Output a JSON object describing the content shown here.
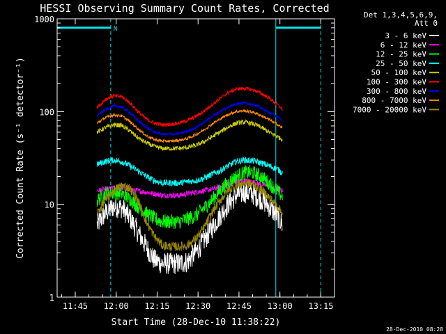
{
  "chart_data": {
    "type": "line",
    "title": "HESSI Observing Summary Count Rates, Corrected",
    "xlabel": "Start Time (28-Dec-10 11:38:22)",
    "ylabel": "Corrected Count Rate (s⁻¹ detector⁻¹)",
    "yscale": "log",
    "ylim": [
      1,
      1000
    ],
    "xlim": [
      "11:38:22",
      "13:20:00"
    ],
    "x_ticks": [
      "11:45",
      "12:00",
      "12:15",
      "12:30",
      "12:45",
      "13:00",
      "13:15"
    ],
    "y_ticks": [
      "1",
      "10",
      "100",
      "1000"
    ],
    "grid": false,
    "legend": {
      "placement": "top-right",
      "header": [
        "Det 1,3,4,5,6,9,",
        "Att 0"
      ]
    },
    "footer_timestamp": "28-Dec-2010 08:28",
    "status_bars": [
      {
        "label": "N",
        "color": "#00e5ee",
        "start": "11:38:22",
        "end": "11:58:00",
        "level": 800
      },
      {
        "label": "",
        "color": "#00e5ee",
        "start": "12:58:30",
        "end": "13:15:00",
        "level": 800
      }
    ],
    "vertical_markers": [
      {
        "time": "11:38:22",
        "style": "solid",
        "color": "#00e5ee"
      },
      {
        "time": "11:58:00",
        "style": "dashed",
        "color": "#00e5ee"
      },
      {
        "time": "12:58:30",
        "style": "solid",
        "color": "#00e5ee"
      },
      {
        "time": "13:15:00",
        "style": "dashed",
        "color": "#00e5ee"
      }
    ],
    "series": [
      {
        "name": "3 - 6 keV",
        "color": "#ffffff",
        "x": [
          "11:53",
          "11:56",
          "11:59",
          "12:02",
          "12:05",
          "12:08",
          "12:11",
          "12:14",
          "12:17",
          "12:20",
          "12:23",
          "12:26",
          "12:29",
          "12:32",
          "12:35",
          "12:38",
          "12:41",
          "12:44",
          "12:47",
          "12:50",
          "12:53",
          "12:56",
          "12:59",
          "13:01"
        ],
        "y": [
          6,
          8,
          9.5,
          9.2,
          7.2,
          5,
          3.5,
          2.5,
          2.3,
          2.3,
          2.3,
          2.4,
          3,
          4,
          5.5,
          7.5,
          10,
          12.5,
          13.5,
          13,
          11.5,
          9.5,
          7.5,
          6
        ]
      },
      {
        "name": "6 - 12 keV",
        "color": "#ff00ff",
        "x": [
          "11:53",
          "11:56",
          "11:59",
          "12:02",
          "12:05",
          "12:08",
          "12:11",
          "12:14",
          "12:17",
          "12:20",
          "12:23",
          "12:26",
          "12:29",
          "12:32",
          "12:35",
          "12:38",
          "12:41",
          "12:44",
          "12:47",
          "12:50",
          "12:53",
          "12:56",
          "12:59",
          "13:01"
        ],
        "y": [
          14,
          14.5,
          15,
          15,
          14.5,
          14,
          13.5,
          13,
          12.5,
          12.5,
          12.5,
          13,
          13.5,
          14,
          14.5,
          15.5,
          16.5,
          17.5,
          18,
          17.5,
          16.5,
          15.5,
          14.5,
          14
        ]
      },
      {
        "name": "12 - 25 keV",
        "color": "#00ff00",
        "x": [
          "11:53",
          "11:56",
          "11:59",
          "12:02",
          "12:05",
          "12:08",
          "12:11",
          "12:14",
          "12:17",
          "12:20",
          "12:23",
          "12:26",
          "12:29",
          "12:32",
          "12:35",
          "12:38",
          "12:41",
          "12:44",
          "12:47",
          "12:50",
          "12:53",
          "12:56",
          "12:59",
          "13:01"
        ],
        "y": [
          11,
          13,
          13.5,
          13,
          11.5,
          9.5,
          8,
          7,
          6.5,
          6.5,
          6.5,
          7,
          7.5,
          9,
          11,
          14,
          17,
          20,
          22,
          22,
          20,
          17,
          14,
          12
        ]
      },
      {
        "name": "25 - 50 keV",
        "color": "#00ffff",
        "x": [
          "11:53",
          "11:56",
          "11:59",
          "12:02",
          "12:05",
          "12:08",
          "12:11",
          "12:14",
          "12:17",
          "12:20",
          "12:23",
          "12:26",
          "12:29",
          "12:32",
          "12:35",
          "12:38",
          "12:41",
          "12:44",
          "12:47",
          "12:50",
          "12:53",
          "12:56",
          "12:59",
          "13:01"
        ],
        "y": [
          27,
          29,
          30,
          29,
          26,
          23,
          20,
          18,
          17,
          17,
          17,
          17.5,
          18,
          19,
          21,
          23,
          26,
          29,
          30,
          29.5,
          28,
          26,
          24,
          22
        ]
      },
      {
        "name": "50 - 100 keV",
        "color": "#cccc00",
        "x": [
          "11:53",
          "11:56",
          "11:59",
          "12:02",
          "12:05",
          "12:08",
          "12:11",
          "12:14",
          "12:17",
          "12:20",
          "12:23",
          "12:26",
          "12:29",
          "12:32",
          "12:35",
          "12:38",
          "12:41",
          "12:44",
          "12:47",
          "12:50",
          "12:53",
          "12:56",
          "12:59",
          "13:01"
        ],
        "y": [
          60,
          67,
          72,
          71,
          62,
          52,
          46,
          42,
          40,
          40,
          40,
          41,
          43,
          47,
          53,
          60,
          68,
          75,
          77,
          74,
          68,
          60,
          54,
          50
        ]
      },
      {
        "name": "100 - 300 keV",
        "color": "#ff0000",
        "x": [
          "11:53",
          "11:56",
          "11:59",
          "12:02",
          "12:05",
          "12:08",
          "12:11",
          "12:14",
          "12:17",
          "12:20",
          "12:23",
          "12:26",
          "12:29",
          "12:32",
          "12:35",
          "12:38",
          "12:41",
          "12:44",
          "12:47",
          "12:50",
          "12:53",
          "12:56",
          "12:59",
          "13:01"
        ],
        "y": [
          110,
          135,
          148,
          145,
          125,
          100,
          83,
          75,
          72,
          73,
          75,
          80,
          88,
          100,
          118,
          138,
          160,
          175,
          178,
          172,
          158,
          140,
          120,
          105
        ]
      },
      {
        "name": "300 - 800 keV",
        "color": "#0000ff",
        "x": [
          "11:53",
          "11:56",
          "11:59",
          "12:02",
          "12:05",
          "12:08",
          "12:11",
          "12:14",
          "12:17",
          "12:20",
          "12:23",
          "12:26",
          "12:29",
          "12:32",
          "12:35",
          "12:38",
          "12:41",
          "12:44",
          "12:47",
          "12:50",
          "12:53",
          "12:56",
          "12:59",
          "13:01"
        ],
        "y": [
          90,
          105,
          115,
          112,
          98,
          80,
          68,
          60,
          57,
          57,
          58,
          61,
          67,
          76,
          88,
          100,
          112,
          122,
          124,
          120,
          110,
          98,
          88,
          80
        ]
      },
      {
        "name": "800 - 7000 keV",
        "color": "#ff8800",
        "x": [
          "11:53",
          "11:56",
          "11:59",
          "12:02",
          "12:05",
          "12:08",
          "12:11",
          "12:14",
          "12:17",
          "12:20",
          "12:23",
          "12:26",
          "12:29",
          "12:32",
          "12:35",
          "12:38",
          "12:41",
          "12:44",
          "12:47",
          "12:50",
          "12:53",
          "12:56",
          "12:59",
          "13:01"
        ],
        "y": [
          75,
          86,
          92,
          90,
          78,
          65,
          55,
          50,
          48,
          48,
          49,
          51,
          56,
          63,
          73,
          83,
          93,
          100,
          102,
          99,
          91,
          82,
          73,
          66
        ]
      },
      {
        "name": "7000 - 20000 keV",
        "color": "#998800",
        "x": [
          "11:53",
          "11:56",
          "11:59",
          "12:02",
          "12:05",
          "12:08",
          "12:11",
          "12:14",
          "12:17",
          "12:20",
          "12:23",
          "12:26",
          "12:29",
          "12:32",
          "12:35",
          "12:38",
          "12:41",
          "12:44",
          "12:47",
          "12:50",
          "12:53",
          "12:56",
          "12:59",
          "13:01"
        ],
        "y": [
          8,
          11,
          14,
          16,
          15,
          11,
          6.5,
          4.5,
          3.6,
          3.5,
          3.5,
          3.6,
          4.2,
          5.5,
          8,
          11,
          14,
          16,
          17,
          16.5,
          14.5,
          12,
          9.5,
          8
        ]
      }
    ]
  }
}
